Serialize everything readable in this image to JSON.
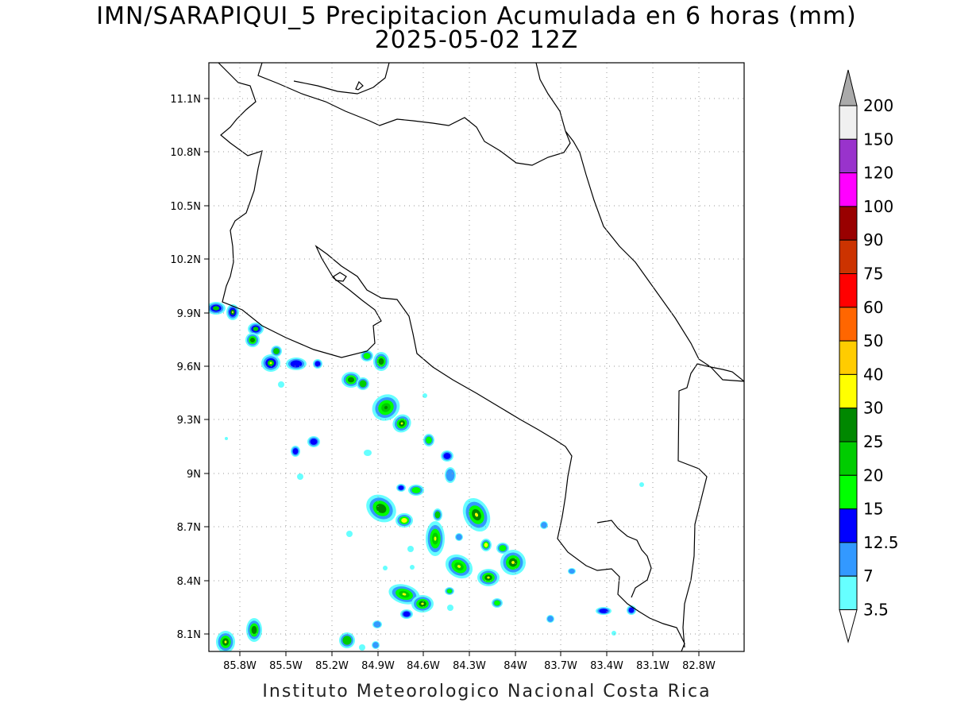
{
  "title": {
    "line1": "IMN/SARAPIQUI_5 Precipitacion Acumulada en 6 horas (mm)",
    "line2": "2025-05-02 12Z"
  },
  "footer": "Instituto Meteorologico Nacional Costa Rica",
  "axes": {
    "lat_ticks": [
      "11.1N",
      "10.8N",
      "10.5N",
      "10.2N",
      "9.9N",
      "9.6N",
      "9.3N",
      "9N",
      "8.7N",
      "8.4N",
      "8.1N"
    ],
    "lon_ticks": [
      "85.8W",
      "85.5W",
      "85.2W",
      "84.9W",
      "84.6W",
      "84.3W",
      "84W",
      "83.7W",
      "83.4W",
      "83.1W",
      "82.8W"
    ],
    "grid": true,
    "grid_style": "dotted"
  },
  "colorbar": {
    "labels": [
      "3.5",
      "7",
      "12.5",
      "15",
      "20",
      "25",
      "30",
      "40",
      "50",
      "60",
      "75",
      "90",
      "100",
      "120",
      "150",
      "200"
    ],
    "colors": [
      "#66ffff",
      "#3399ff",
      "#0000ff",
      "#00ff00",
      "#00cc00",
      "#008800",
      "#ffff00",
      "#ffcc00",
      "#ff6600",
      "#ff0000",
      "#cc3300",
      "#990000",
      "#ff00ff",
      "#9933cc",
      "#f0f0f0",
      "#999999"
    ],
    "under_color": "#ffffff",
    "over_color": "#aaaaaa"
  },
  "colors": {
    "coastline": "#000000",
    "grid": "#999999"
  }
}
